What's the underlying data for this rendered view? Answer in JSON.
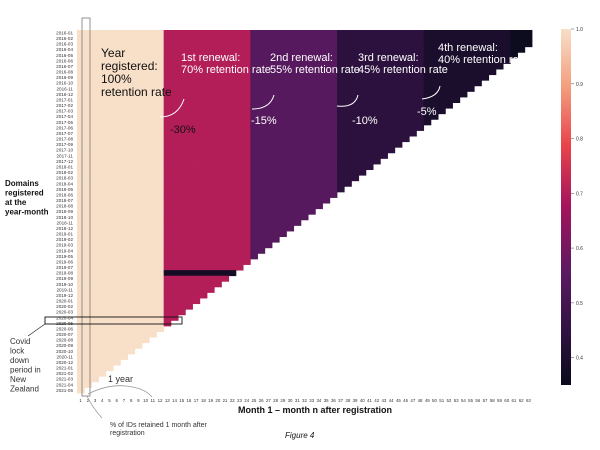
{
  "chart_data": {
    "type": "heatmap",
    "title": "",
    "caption": "Figure 4",
    "xlabel": "Month 1 – month n after registration",
    "ylabel": "Domains registered at the year-month",
    "x": [
      1,
      2,
      3,
      4,
      5,
      6,
      7,
      8,
      9,
      10,
      11,
      12,
      13,
      14,
      15,
      16,
      17,
      18,
      19,
      20,
      21,
      22,
      23,
      24,
      25,
      26,
      27,
      28,
      29,
      30,
      31,
      32,
      33,
      34,
      35,
      36,
      37,
      38,
      39,
      40,
      41,
      42,
      43,
      44,
      45,
      46,
      47,
      48,
      49,
      50,
      51,
      52,
      53,
      54,
      55,
      56,
      57,
      58,
      59,
      60,
      61,
      62,
      63
    ],
    "y": [
      "2016-01",
      "2016-02",
      "2016-03",
      "2016-04",
      "2016-05",
      "2016-06",
      "2016-07",
      "2016-08",
      "2016-09",
      "2016-10",
      "2016-11",
      "2016-12",
      "2017-01",
      "2017-02",
      "2017-03",
      "2017-04",
      "2017-05",
      "2017-06",
      "2017-07",
      "2017-08",
      "2017-09",
      "2017-10",
      "2017-11",
      "2017-12",
      "2018-01",
      "2018-02",
      "2018-03",
      "2018-04",
      "2018-05",
      "2018-06",
      "2018-07",
      "2018-08",
      "2018-09",
      "2018-10",
      "2018-11",
      "2018-12",
      "2019-01",
      "2019-02",
      "2019-03",
      "2019-04",
      "2019-05",
      "2019-06",
      "2019-07",
      "2019-08",
      "2019-09",
      "2019-10",
      "2019-11",
      "2019-12",
      "2020-01",
      "2020-02",
      "2020-03",
      "2020-04",
      "2020-05",
      "2020-06",
      "2020-07",
      "2020-08",
      "2020-09",
      "2020-10",
      "2020-11",
      "2020-12",
      "2021-01",
      "2021-02",
      "2021-03",
      "2021-04",
      "2021-05"
    ],
    "value_model": {
      "months_1_to_12": 1.0,
      "months_13_to_24": 0.7,
      "months_25_to_36": 0.55,
      "months_37_to_48": 0.45,
      "months_49_to_60": 0.4,
      "months_61_to_63": 0.36,
      "note_row": "2019-08",
      "note_row_value_months_13_to_24": 0.38
    },
    "colorbar": {
      "min": 0.35,
      "max": 1.0,
      "ticks": [
        "1.0",
        "0.9",
        "0.8",
        "0.7",
        "0.6",
        "0.5",
        "0.4"
      ]
    },
    "colors": [
      "#f7dfc8",
      "#f39f7f",
      "#e8424a",
      "#a3135d",
      "#5d1a63",
      "#2f1241",
      "#0a0a1a"
    ],
    "annotations": {
      "year1": "Year registered: 100% retention rate",
      "ren1": "1st renewal: 70% retention rate",
      "ren2": "2nd renewal: 55% retention rate",
      "ren3": "3rd renewal: 45% retention rate",
      "ren4": "4th renewal: 40% retention rate",
      "d1": "-30%",
      "d2": "-15%",
      "d3": "-10%",
      "d4": "-5%",
      "oneyear": "1 year",
      "covid": "Covid lock down period in New Zealand",
      "pct": "% of IDs retained 1 month after registration"
    },
    "grid": false,
    "legend": "colorbar-right"
  }
}
